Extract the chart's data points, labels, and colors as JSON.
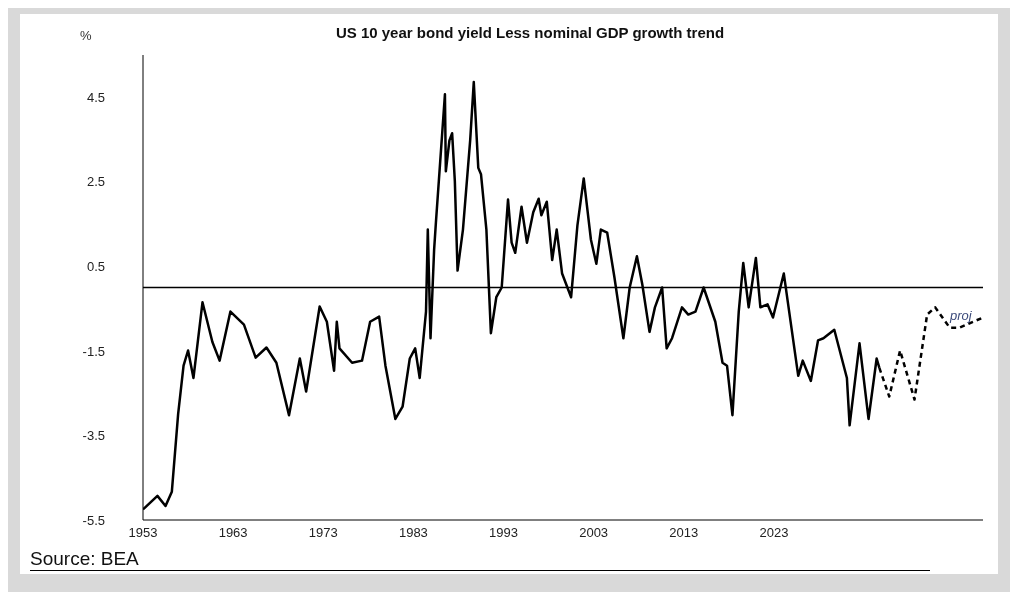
{
  "chart_data": {
    "type": "line",
    "title": "US 10 year bond yield Less nominal GDP growth trend",
    "ylabel": "%",
    "series": [
      {
        "color": "#000000",
        "line_style": "solid",
        "x": [
          1953.0,
          1954.6,
          1955.5,
          1956.2,
          1956.9,
          1957.5,
          1958.0,
          1958.6,
          1959.6,
          1960.7,
          1961.5,
          1962.7,
          1964.2,
          1965.5,
          1966.7,
          1967.8,
          1969.2,
          1970.4,
          1971.1,
          1972.6,
          1973.4,
          1974.2,
          1974.5,
          1974.8,
          1976.2,
          1977.3,
          1978.2,
          1979.2,
          1979.9,
          1981.0,
          1981.8,
          1982.6,
          1983.2,
          1983.7,
          1984.4,
          1984.6,
          1984.9,
          1985.3,
          1985.5,
          1986.5,
          1986.6,
          1987.0,
          1987.3,
          1987.6,
          1987.9,
          1988.5,
          1989.3,
          1989.7,
          1990.2,
          1990.5,
          1991.1,
          1991.6,
          1992.2,
          1992.8,
          1993.5,
          1993.9,
          1994.3,
          1995.0,
          1995.6,
          1996.3,
          1996.9,
          1997.2,
          1997.8,
          1998.4,
          1998.9,
          1999.5,
          2000.5,
          2001.2,
          2001.9,
          2002.7,
          2003.3,
          2003.8,
          2004.5,
          2005.3,
          2006.3,
          2007.0,
          2007.8,
          2008.4,
          2009.2,
          2009.8,
          2010.6,
          2011.1,
          2011.7,
          2012.8,
          2013.5,
          2014.3,
          2015.2,
          2016.5,
          2017.3,
          2017.8,
          2018.4,
          2019.1,
          2019.6,
          2020.2,
          2021.0,
          2021.5,
          2022.3,
          2022.9,
          2024.1,
          2025.7,
          2026.2,
          2027.1,
          2027.9,
          2028.5,
          2029.7,
          2031.1,
          2031.4,
          2032.5,
          2033.5,
          2034.4,
          2034.7
        ],
        "values": [
          -5.25,
          -4.93,
          -5.17,
          -4.83,
          -2.99,
          -1.85,
          -1.49,
          -2.14,
          -0.35,
          -1.29,
          -1.73,
          -0.57,
          -0.88,
          -1.66,
          -1.42,
          -1.78,
          -3.02,
          -1.68,
          -2.46,
          -0.45,
          -0.81,
          -1.97,
          -0.81,
          -1.44,
          -1.78,
          -1.73,
          -0.81,
          -0.69,
          -1.85,
          -3.11,
          -2.82,
          -1.68,
          -1.44,
          -2.14,
          -0.57,
          1.37,
          -1.2,
          0.89,
          1.54,
          4.57,
          2.75,
          3.48,
          3.65,
          2.51,
          0.4,
          1.37,
          3.48,
          4.86,
          2.83,
          2.68,
          1.37,
          -1.08,
          -0.23,
          0.0,
          2.08,
          1.06,
          0.82,
          1.91,
          1.06,
          1.78,
          2.1,
          1.71,
          2.03,
          0.65,
          1.37,
          0.33,
          -0.23,
          1.47,
          2.58,
          1.13,
          0.56,
          1.37,
          1.3,
          0.25,
          -1.2,
          0.0,
          0.74,
          0.07,
          -1.05,
          -0.47,
          0.0,
          -1.44,
          -1.2,
          -0.47,
          -0.64,
          -0.57,
          0.0,
          -0.81,
          -1.78,
          -1.85,
          -3.02,
          -0.57,
          0.58,
          -0.47,
          0.7,
          -0.47,
          -0.4,
          -0.71,
          0.33,
          -2.09,
          -1.73,
          -2.21,
          -1.25,
          -1.2,
          -1.0,
          -2.14,
          -3.26,
          -1.32,
          -3.11,
          -1.68,
          -1.9
        ]
      },
      {
        "color": "#000000",
        "line_style": "dashed",
        "x": [
          2034.7,
          2035.8,
          2037.0,
          2038.6,
          2040.0,
          2040.9,
          2042.5,
          2043.6,
          2046.2
        ],
        "values": [
          -1.9,
          -2.58,
          -1.49,
          -2.65,
          -0.64,
          -0.47,
          -0.95,
          -0.95,
          -0.71
        ]
      }
    ],
    "xlim": [
      1953,
      2046.2
    ],
    "xticks": [
      1953,
      1963,
      1973,
      1983,
      1993,
      2003,
      2013,
      2023
    ],
    "ylim": [
      -5.5,
      5.5
    ],
    "yticks": [
      -5.5,
      -3.5,
      -1.5,
      0.5,
      2.5,
      4.5
    ],
    "ref_lines": [
      {
        "axis": "y",
        "value": 0,
        "color": "#000000"
      }
    ],
    "annotations": [
      "proj",
      "Source: BEA"
    ]
  }
}
